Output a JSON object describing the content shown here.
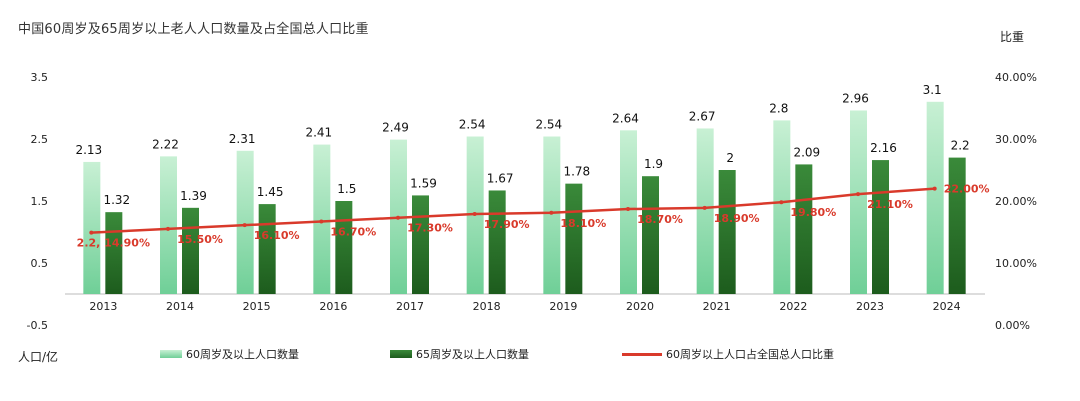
{
  "title": "中国60周岁及65周岁以上老人人口数量及占全国总人口比重",
  "ylabel_left": "人口/亿",
  "ylabel_right": "比重",
  "colors": {
    "bar60_top": "#c8f0d4",
    "bar60_bottom": "#6fcf97",
    "bar65_top": "#3a8a3a",
    "bar65_bottom": "#1d5c1d",
    "line": "#d93a2b",
    "label_red": "#d93a2b",
    "axis": "#bbbbbb"
  },
  "chart_data": {
    "type": "bar",
    "categories": [
      "2013",
      "2014",
      "2015",
      "2016",
      "2017",
      "2018",
      "2019",
      "2020",
      "2021",
      "2022",
      "2023",
      "2024"
    ],
    "series": [
      {
        "name": "60周岁及以上人口数量",
        "values": [
          2.13,
          2.22,
          2.31,
          2.41,
          2.49,
          2.54,
          2.54,
          2.64,
          2.67,
          2.8,
          2.96,
          3.1
        ],
        "labels": [
          "2.13",
          "2.22",
          "2.31",
          "2.41",
          "2.49",
          "2.54",
          "2.54",
          "2.64",
          "2.67",
          "2.8",
          "2.96",
          "3.1"
        ]
      },
      {
        "name": "65周岁及以上人口数量",
        "values": [
          1.32,
          1.39,
          1.45,
          1.5,
          1.59,
          1.67,
          1.78,
          1.9,
          2,
          2.09,
          2.16,
          2.2
        ],
        "labels": [
          "1.32",
          "1.39",
          "1.45",
          "1.5",
          "1.59",
          "1.67",
          "1.78",
          "1.9",
          "2",
          "2.09",
          "2.16",
          "2.2"
        ]
      },
      {
        "name": "60周岁以上人口占全国总人口比重",
        "type": "line",
        "axis": "right",
        "values": [
          14.9,
          15.5,
          16.1,
          16.7,
          17.3,
          17.9,
          18.1,
          18.7,
          18.9,
          19.8,
          21.1,
          22.0
        ],
        "labels": [
          "2.2, 14.90%",
          "15.50%",
          "16.10%",
          "16.70%",
          "17.30%",
          "17.90%",
          "18.10%",
          "18.70%",
          "18.90%",
          "19.80%",
          "21.10%",
          "22.00%"
        ]
      }
    ],
    "ylim": [
      -0.5,
      3.5
    ],
    "yticks": [
      "-0.5",
      "0.5",
      "1.5",
      "2.5",
      "3.5"
    ],
    "ylim_right": [
      0,
      40
    ],
    "yticks_right": [
      "0.00%",
      "10.00%",
      "20.00%",
      "30.00%",
      "40.00%"
    ],
    "legend": "bottom"
  }
}
